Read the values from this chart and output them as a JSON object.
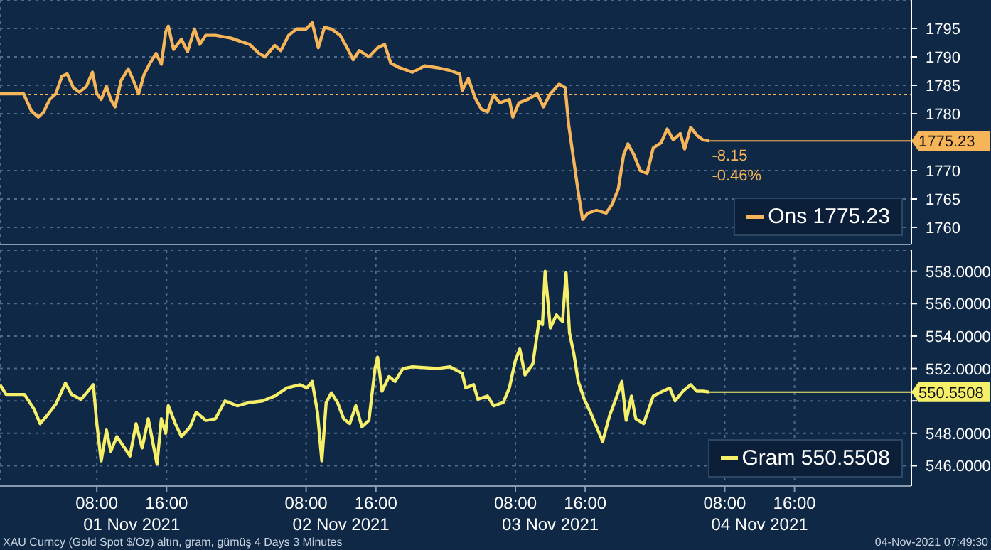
{
  "chart_data": [
    {
      "type": "line",
      "legend": "bottom right",
      "grid": true,
      "tick_labels": "y",
      "line_style": "solid",
      "marker": "none",
      "xlim": [
        "2021-10-31T20:54",
        "2021-11-05T05:24"
      ],
      "xticks": [
        {
          "value": "2021-11-01T08:00",
          "label": null
        },
        {
          "value": "2021-11-01T16:00",
          "label": null
        },
        {
          "value": "2021-11-02T08:00",
          "label": null
        },
        {
          "value": "2021-11-02T16:00",
          "label": null
        },
        {
          "value": "2021-11-03T08:00",
          "label": null
        },
        {
          "value": "2021-11-03T16:00",
          "label": null
        },
        {
          "value": "2021-11-04T08:00",
          "label": null
        },
        {
          "value": "2021-11-04T16:00",
          "label": null
        }
      ],
      "ylim": [
        1757,
        1800
      ],
      "yticks": [
        1760,
        1765,
        1770,
        1780,
        1785,
        1790,
        1795
      ],
      "series": [
        {
          "name": "Ons 1775.23",
          "color": "#f7b55a",
          "x": [
            "2021-10-31T20:54",
            "2021-10-31T23:36",
            "2021-11-01T00:30",
            "2021-11-01T01:18",
            "2021-11-01T01:54",
            "2021-11-01T02:36",
            "2021-11-01T03:18",
            "2021-11-01T04:00",
            "2021-11-01T04:36",
            "2021-11-01T05:18",
            "2021-11-01T06:00",
            "2021-11-01T06:48",
            "2021-11-01T07:30",
            "2021-11-01T08:00",
            "2021-11-01T08:30",
            "2021-11-01T09:06",
            "2021-11-01T09:36",
            "2021-11-01T10:06",
            "2021-11-01T10:48",
            "2021-11-01T11:36",
            "2021-11-01T12:06",
            "2021-11-01T12:48",
            "2021-11-01T13:24",
            "2021-11-01T14:06",
            "2021-11-01T14:48",
            "2021-11-01T15:24",
            "2021-11-01T15:54",
            "2021-11-01T16:12",
            "2021-11-01T16:48",
            "2021-11-01T17:42",
            "2021-11-01T18:24",
            "2021-11-01T19:12",
            "2021-11-01T19:48",
            "2021-11-01T20:30",
            "2021-11-01T21:36",
            "2021-11-01T23:24",
            "2021-11-02T00:30",
            "2021-11-02T01:30",
            "2021-11-02T02:36",
            "2021-11-02T03:18",
            "2021-11-02T04:24",
            "2021-11-02T05:06",
            "2021-11-02T06:00",
            "2021-11-02T06:54",
            "2021-11-02T08:00",
            "2021-11-02T08:42",
            "2021-11-02T09:24",
            "2021-11-02T10:06",
            "2021-11-02T10:54",
            "2021-11-02T11:54",
            "2021-11-02T12:42",
            "2021-11-02T13:24",
            "2021-11-02T14:06",
            "2021-11-02T15:12",
            "2021-11-02T16:12",
            "2021-11-02T17:00",
            "2021-11-02T17:42",
            "2021-11-02T18:42",
            "2021-11-02T20:12",
            "2021-11-02T21:36",
            "2021-11-02T23:00",
            "2021-11-03T00:30",
            "2021-11-03T01:36",
            "2021-11-03T01:54",
            "2021-11-03T02:36",
            "2021-11-03T03:24",
            "2021-11-03T04:06",
            "2021-11-03T04:48",
            "2021-11-03T05:30",
            "2021-11-03T06:12",
            "2021-11-03T07:18",
            "2021-11-03T07:42",
            "2021-11-03T08:24",
            "2021-11-03T09:24",
            "2021-11-03T10:30",
            "2021-11-03T11:12",
            "2021-11-03T12:00",
            "2021-11-03T13:00",
            "2021-11-03T13:42",
            "2021-11-03T14:06",
            "2021-11-03T14:42",
            "2021-11-03T15:12",
            "2021-11-03T15:42",
            "2021-11-03T16:18",
            "2021-11-03T17:18",
            "2021-11-03T18:24",
            "2021-11-03T19:06",
            "2021-11-03T19:48",
            "2021-11-03T20:24",
            "2021-11-03T20:54",
            "2021-11-03T21:36",
            "2021-11-03T22:18",
            "2021-11-03T23:06",
            "2021-11-03T23:48",
            "2021-11-04T00:42",
            "2021-11-04T01:24",
            "2021-11-04T02:06",
            "2021-11-04T02:54",
            "2021-11-04T03:24",
            "2021-11-04T04:06",
            "2021-11-04T04:48",
            "2021-11-04T05:30",
            "2021-11-04T06:12"
          ],
          "values": [
            1783.5,
            1783.5,
            1780.5,
            1779.4,
            1780.3,
            1782.5,
            1783.5,
            1786.6,
            1787.0,
            1784.6,
            1783.8,
            1784.8,
            1787.3,
            1783.5,
            1782.5,
            1784.8,
            1782.5,
            1781.2,
            1785.9,
            1787.9,
            1786.2,
            1783.5,
            1786.8,
            1788.9,
            1790.6,
            1788.7,
            1794.4,
            1795.4,
            1791.3,
            1793.1,
            1790.9,
            1794.9,
            1792.2,
            1793.8,
            1793.8,
            1793.3,
            1792.7,
            1792.2,
            1790.6,
            1790.0,
            1792.0,
            1791.1,
            1793.8,
            1794.9,
            1794.9,
            1796.0,
            1791.6,
            1795.2,
            1794.9,
            1793.8,
            1791.6,
            1789.5,
            1791.1,
            1790.0,
            1791.6,
            1792.2,
            1788.9,
            1788.1,
            1787.3,
            1788.4,
            1788.1,
            1787.6,
            1787.0,
            1784.1,
            1786.2,
            1782.7,
            1780.8,
            1780.3,
            1783.3,
            1781.9,
            1782.5,
            1779.4,
            1781.9,
            1782.5,
            1783.5,
            1781.2,
            1783.5,
            1785.2,
            1784.6,
            1778.1,
            1771.6,
            1766.2,
            1761.4,
            1762.5,
            1763.0,
            1762.5,
            1764.1,
            1766.8,
            1772.7,
            1774.7,
            1772.7,
            1770.0,
            1769.5,
            1774.0,
            1774.9,
            1777.3,
            1775.4,
            1776.5,
            1773.8,
            1777.6,
            1776.2,
            1775.4,
            1775.23
          ]
        }
      ],
      "ref_lines": [
        {
          "axis": "y",
          "value": 1783.38,
          "color": "#f7b55a",
          "line_style": "dotted"
        },
        {
          "axis": "y",
          "value": 1775.23,
          "label": "1775.23",
          "color": "#f7b55a",
          "line_style": "solid"
        }
      ],
      "annotations": [
        {
          "text": "-8.15",
          "x": "2021-11-04T06:12",
          "y": 1775.23
        },
        {
          "text": "-0.46%",
          "x": "2021-11-04T06:12",
          "y": 1775.23
        },
        "XAU Curncy (Gold Spot  $/Oz) altın, gram, gümüş 4 Days 3 Minutes",
        "04-Nov-2021 07:49:30"
      ]
    },
    {
      "type": "line",
      "legend": "bottom right",
      "grid": true,
      "line_style": "solid",
      "marker": "none",
      "xlim": [
        "2021-10-31T20:54",
        "2021-11-05T05:24"
      ],
      "xticks": [
        {
          "value": "2021-11-01T08:00",
          "label": "08:00"
        },
        {
          "value": "2021-11-01T16:00",
          "label": "16:00"
        },
        {
          "value": "2021-11-02T08:00",
          "label": "08:00"
        },
        {
          "value": "2021-11-02T16:00",
          "label": "16:00"
        },
        {
          "value": "2021-11-03T08:00",
          "label": "08:00"
        },
        {
          "value": "2021-11-03T16:00",
          "label": "16:00"
        },
        {
          "value": "2021-11-04T08:00",
          "label": "08:00"
        },
        {
          "value": "2021-11-04T16:00",
          "label": "16:00"
        }
      ],
      "ylim": [
        544.75,
        559.3
      ],
      "yticks": [
        {
          "value": 546,
          "label": "546.0000"
        },
        {
          "value": 548,
          "label": "548.0000"
        },
        {
          "value": 550,
          "label": null
        },
        {
          "value": 552,
          "label": "552.0000"
        },
        {
          "value": 554,
          "label": "554.0000"
        },
        {
          "value": 556,
          "label": "556.0000"
        },
        {
          "value": 558,
          "label": "558.0000"
        }
      ],
      "series": [
        {
          "name": "Gram 550.5508",
          "color": "#f5ef6a",
          "x": [
            "2021-10-31T20:54",
            "2021-10-31T21:36",
            "2021-10-31T23:42",
            "2021-11-01T00:48",
            "2021-11-01T01:30",
            "2021-11-01T02:18",
            "2021-11-01T03:18",
            "2021-11-01T04:24",
            "2021-11-01T05:06",
            "2021-11-01T06:12",
            "2021-11-01T07:36",
            "2021-11-01T08:00",
            "2021-11-01T08:30",
            "2021-11-01T09:06",
            "2021-11-01T09:36",
            "2021-11-01T10:18",
            "2021-11-01T11:12",
            "2021-11-01T11:48",
            "2021-11-01T12:30",
            "2021-11-01T13:12",
            "2021-11-01T13:54",
            "2021-11-01T14:24",
            "2021-11-01T14:54",
            "2021-11-01T15:24",
            "2021-11-01T15:54",
            "2021-11-01T16:12",
            "2021-11-01T17:00",
            "2021-11-01T17:42",
            "2021-11-01T18:42",
            "2021-11-01T19:24",
            "2021-11-01T20:30",
            "2021-11-01T21:36",
            "2021-11-01T22:42",
            "2021-11-02T00:06",
            "2021-11-02T01:30",
            "2021-11-02T03:00",
            "2021-11-02T04:24",
            "2021-11-02T05:48",
            "2021-11-02T07:18",
            "2021-11-02T08:06",
            "2021-11-02T08:42",
            "2021-11-02T09:18",
            "2021-11-02T09:48",
            "2021-11-02T10:18",
            "2021-11-02T10:54",
            "2021-11-02T11:36",
            "2021-11-02T12:18",
            "2021-11-02T13:00",
            "2021-11-02T13:42",
            "2021-11-02T14:24",
            "2021-11-02T15:12",
            "2021-11-02T15:54",
            "2021-11-02T16:12",
            "2021-11-02T16:42",
            "2021-11-02T17:30",
            "2021-11-02T18:12",
            "2021-11-02T19:06",
            "2021-11-02T20:12",
            "2021-11-02T23:00",
            "2021-11-03T00:30",
            "2021-11-03T01:54",
            "2021-11-03T02:18",
            "2021-11-03T03:12",
            "2021-11-03T03:42",
            "2021-11-03T04:48",
            "2021-11-03T05:30",
            "2021-11-03T06:36",
            "2021-11-03T07:18",
            "2021-11-03T08:00",
            "2021-11-03T08:30",
            "2021-11-03T09:06",
            "2021-11-03T10:00",
            "2021-11-03T10:42",
            "2021-11-03T11:06",
            "2021-11-03T11:24",
            "2021-11-03T12:00",
            "2021-11-03T12:42",
            "2021-11-03T13:24",
            "2021-11-03T13:48",
            "2021-11-03T14:12",
            "2021-11-03T14:42",
            "2021-11-03T15:12",
            "2021-11-03T15:54",
            "2021-11-03T16:36",
            "2021-11-03T17:18",
            "2021-11-03T18:00",
            "2021-11-03T18:48",
            "2021-11-03T19:30",
            "2021-11-03T20:12",
            "2021-11-03T20:42",
            "2021-11-03T21:18",
            "2021-11-03T21:48",
            "2021-11-03T22:42",
            "2021-11-03T23:48",
            "2021-11-04T00:54",
            "2021-11-04T01:42",
            "2021-11-04T02:18",
            "2021-11-04T03:12",
            "2021-11-04T04:06",
            "2021-11-04T04:48",
            "2021-11-04T05:30",
            "2021-11-04T06:12"
          ],
          "values": [
            551.0,
            550.4,
            550.4,
            549.5,
            548.6,
            549.1,
            549.8,
            551.1,
            550.4,
            550.1,
            551.0,
            548.6,
            546.3,
            548.2,
            546.9,
            547.8,
            547.1,
            546.6,
            548.6,
            547.1,
            548.9,
            547.5,
            546.1,
            548.9,
            548.0,
            549.7,
            548.6,
            547.8,
            548.4,
            549.3,
            548.8,
            548.9,
            550.0,
            549.7,
            549.9,
            550.0,
            550.3,
            550.8,
            551.0,
            550.8,
            551.2,
            549.3,
            546.3,
            549.9,
            550.5,
            549.9,
            548.9,
            548.6,
            549.7,
            548.4,
            548.8,
            552.0,
            552.7,
            550.6,
            551.5,
            551.2,
            552.0,
            552.1,
            552.0,
            552.1,
            551.7,
            550.8,
            551.0,
            550.1,
            550.3,
            549.7,
            549.9,
            550.8,
            552.5,
            553.2,
            551.6,
            552.3,
            554.9,
            554.7,
            558.0,
            554.5,
            555.3,
            554.9,
            557.9,
            554.2,
            552.9,
            551.2,
            550.1,
            549.3,
            548.4,
            547.5,
            549.1,
            550.1,
            551.2,
            548.8,
            550.3,
            548.9,
            548.6,
            550.3,
            550.6,
            550.8,
            550.0,
            550.6,
            551.0,
            550.6,
            550.6,
            550.5508
          ]
        }
      ],
      "ref_lines": [
        {
          "axis": "y",
          "value": 550.5508,
          "label": "550.5508",
          "color": "#f5ef6a",
          "line_style": "solid"
        }
      ],
      "annotations": [
        "01 Nov 2021",
        "02 Nov 2021",
        "03 Nov 2021",
        "04 Nov 2021"
      ]
    }
  ]
}
